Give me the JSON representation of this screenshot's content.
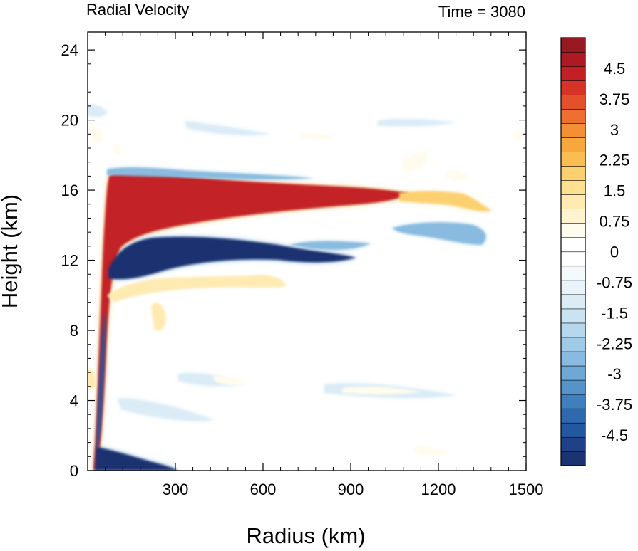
{
  "chart_data": {
    "type": "heatmap",
    "title_left": "Radial Velocity",
    "title_right": "Time = 3080",
    "xlabel": "Radius (km)",
    "ylabel": "Height (km)",
    "xlim": [
      0,
      1500
    ],
    "ylim": [
      0,
      25.5
    ],
    "x_ticks": [
      {
        "v": 300,
        "label": "300"
      },
      {
        "v": 600,
        "label": "600"
      },
      {
        "v": 900,
        "label": "900"
      },
      {
        "v": 1200,
        "label": "1200"
      },
      {
        "v": 1500,
        "label": "1500"
      }
    ],
    "y_ticks": [
      {
        "v": 0,
        "label": "0"
      },
      {
        "v": 4,
        "label": "4"
      },
      {
        "v": 8,
        "label": "8"
      },
      {
        "v": 12,
        "label": "12"
      },
      {
        "v": 16,
        "label": "16"
      },
      {
        "v": 20,
        "label": "20"
      },
      {
        "v": 24,
        "label": "24"
      }
    ],
    "colorbar": {
      "min": -5.25,
      "max": 5.25,
      "step": 0.375,
      "colors": [
        "#1b3370",
        "#1f4188",
        "#2358a0",
        "#2e69b0",
        "#3f7fbe",
        "#5693ca",
        "#6ea8d5",
        "#88bbdf",
        "#a0cbe7",
        "#b6d8ee",
        "#cae3f3",
        "#dbecf7",
        "#e9f3fa",
        "#f4f9fc",
        "#ffffff",
        "#ffffff",
        "#fffbed",
        "#fff3d2",
        "#ffeab2",
        "#fde090",
        "#fcd070",
        "#f9bd52",
        "#f6a83e",
        "#f38f35",
        "#ee7030",
        "#e4502a",
        "#d63226",
        "#c32025",
        "#ad1a23",
        "#961a20"
      ],
      "labels": [
        {
          "v": 4.5,
          "label": "4.5"
        },
        {
          "v": 3.75,
          "label": "3.75"
        },
        {
          "v": 3,
          "label": "3"
        },
        {
          "v": 2.25,
          "label": "2.25"
        },
        {
          "v": 1.5,
          "label": "1.5"
        },
        {
          "v": 0.75,
          "label": "0.75"
        },
        {
          "v": 0,
          "label": "0"
        },
        {
          "v": -0.75,
          "label": "-0.75"
        },
        {
          "v": -1.5,
          "label": "-1.5"
        },
        {
          "v": -2.25,
          "label": "-2.25"
        },
        {
          "v": -3,
          "label": "-3"
        },
        {
          "v": -3.75,
          "label": "-3.75"
        },
        {
          "v": -4.5,
          "label": "-4.5"
        }
      ]
    },
    "features": [
      {
        "name": "upper-outflow-core",
        "sign": "positive",
        "value": 5.2
      },
      {
        "name": "upper-outflow-tail",
        "sign": "positive",
        "value": 2.5
      },
      {
        "name": "mid-inflow-core",
        "sign": "negative",
        "value": -5.2
      },
      {
        "name": "surface-inflow",
        "sign": "negative",
        "value": -5.2
      },
      {
        "name": "secondary-outflow",
        "sign": "positive",
        "value": 1.5
      },
      {
        "name": "upper-inflow-band",
        "sign": "negative",
        "value": -2.5
      },
      {
        "name": "eyewall-inflow",
        "sign": "negative",
        "value": -4.5
      },
      {
        "name": "outer-inflow-patch",
        "sign": "negative",
        "value": -1.0
      },
      {
        "name": "weak-upper-patches",
        "sign": "positive",
        "value": 1.0
      }
    ]
  }
}
